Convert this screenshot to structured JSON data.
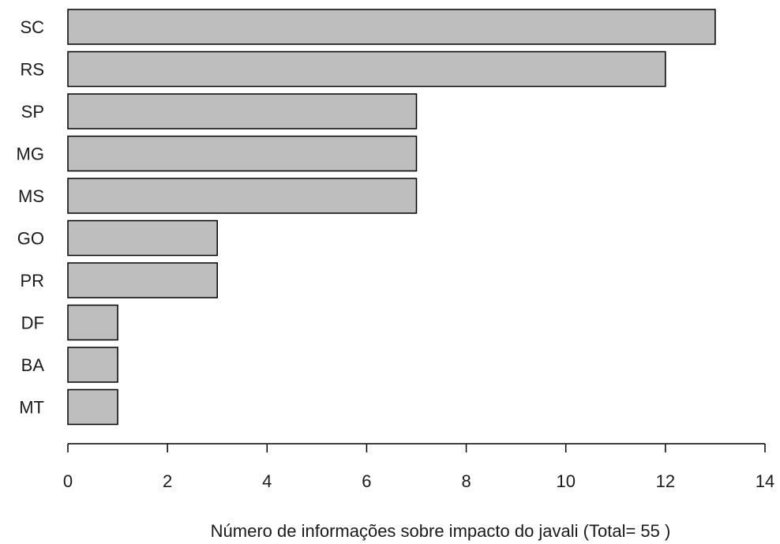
{
  "chart_data": {
    "type": "bar",
    "orientation": "horizontal",
    "title": "",
    "xlabel": "Número de informações sobre impacto do javali (Total= 55 )",
    "ylabel": "",
    "categories": [
      "SC",
      "RS",
      "SP",
      "MG",
      "MS",
      "GO",
      "PR",
      "DF",
      "BA",
      "MT"
    ],
    "values": [
      13,
      12,
      7,
      7,
      7,
      3,
      3,
      1,
      1,
      1
    ],
    "xlim": [
      0,
      14
    ],
    "xticks": [
      0,
      2,
      4,
      6,
      8,
      10,
      12,
      14
    ],
    "grid": false,
    "legend": "none",
    "colors": {
      "bar_fill": "#bebebe",
      "bar_stroke": "#000000"
    }
  }
}
